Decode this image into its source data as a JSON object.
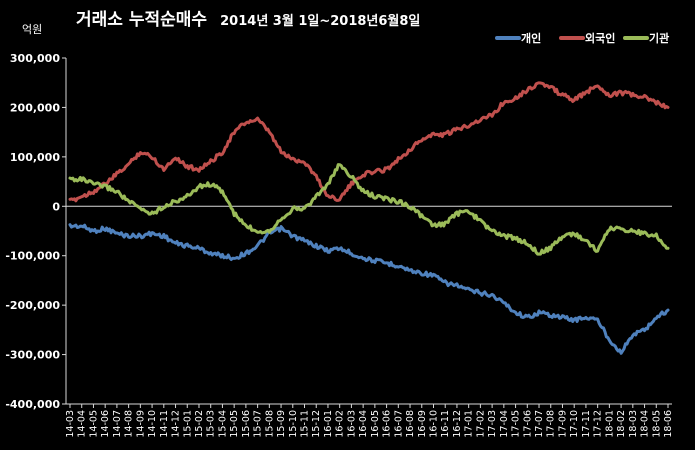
{
  "chart_data": {
    "type": "line",
    "title": "거래소 누적순매수",
    "subtitle": "2014년 3월 1일~2018년6월8일",
    "unit_label": "억원",
    "ylim": [
      -400000,
      300000
    ],
    "yticks": [
      -400000,
      -300000,
      -200000,
      -100000,
      0,
      100000,
      200000,
      300000
    ],
    "ytick_labels": [
      "-400,000",
      "-300,000",
      "-200,000",
      "-100,000",
      "0",
      "100,000",
      "200,000",
      "300,000"
    ],
    "grid": false,
    "legend_position": "top-right",
    "categories": [
      "14-03",
      "14-04",
      "14-05",
      "14-06",
      "14-07",
      "14-08",
      "14-09",
      "14-10",
      "14-11",
      "14-12",
      "15-01",
      "15-02",
      "15-03",
      "15-04",
      "15-05",
      "15-06",
      "15-07",
      "15-08",
      "15-09",
      "15-10",
      "15-11",
      "15-12",
      "16-01",
      "16-02",
      "16-03",
      "16-04",
      "16-05",
      "16-06",
      "16-07",
      "16-08",
      "16-09",
      "16-10",
      "16-11",
      "16-12",
      "17-01",
      "17-02",
      "17-03",
      "17-04",
      "17-05",
      "17-06",
      "17-07",
      "17-08",
      "17-09",
      "17-10",
      "17-11",
      "17-12",
      "18-01",
      "18-02",
      "18-03",
      "18-04",
      "18-05",
      "18-06"
    ],
    "series": [
      {
        "name": "개인",
        "color": "#4F81BD",
        "values": [
          -40000,
          -40000,
          -50000,
          -45000,
          -55000,
          -60000,
          -60000,
          -55000,
          -60000,
          -75000,
          -80000,
          -85000,
          -95000,
          -100000,
          -105000,
          -95000,
          -80000,
          -55000,
          -45000,
          -60000,
          -70000,
          -80000,
          -90000,
          -85000,
          -95000,
          -105000,
          -110000,
          -115000,
          -120000,
          -130000,
          -135000,
          -140000,
          -155000,
          -160000,
          -170000,
          -175000,
          -180000,
          -195000,
          -215000,
          -225000,
          -215000,
          -220000,
          -225000,
          -230000,
          -225000,
          -230000,
          -270000,
          -295000,
          -260000,
          -250000,
          -225000,
          -210000
        ]
      },
      {
        "name": "외국인",
        "color": "#C0504D",
        "values": [
          10000,
          20000,
          30000,
          45000,
          65000,
          85000,
          110000,
          100000,
          75000,
          100000,
          80000,
          75000,
          90000,
          110000,
          150000,
          170000,
          175000,
          150000,
          110000,
          95000,
          90000,
          60000,
          20000,
          15000,
          45000,
          65000,
          70000,
          75000,
          95000,
          115000,
          135000,
          145000,
          145000,
          155000,
          165000,
          175000,
          185000,
          210000,
          220000,
          235000,
          250000,
          240000,
          225000,
          215000,
          230000,
          245000,
          225000,
          230000,
          225000,
          220000,
          210000,
          200000
        ]
      },
      {
        "name": "기관",
        "color": "#9BBB59",
        "values": [
          55000,
          55000,
          45000,
          40000,
          30000,
          10000,
          -5000,
          -15000,
          0,
          10000,
          20000,
          40000,
          45000,
          30000,
          -15000,
          -40000,
          -50000,
          -50000,
          -25000,
          -5000,
          -5000,
          20000,
          45000,
          85000,
          60000,
          30000,
          20000,
          15000,
          10000,
          0,
          -20000,
          -40000,
          -35000,
          -15000,
          -10000,
          -30000,
          -50000,
          -60000,
          -65000,
          -75000,
          -95000,
          -85000,
          -60000,
          -55000,
          -70000,
          -90000,
          -45000,
          -45000,
          -50000,
          -55000,
          -60000,
          -85000
        ]
      }
    ]
  }
}
